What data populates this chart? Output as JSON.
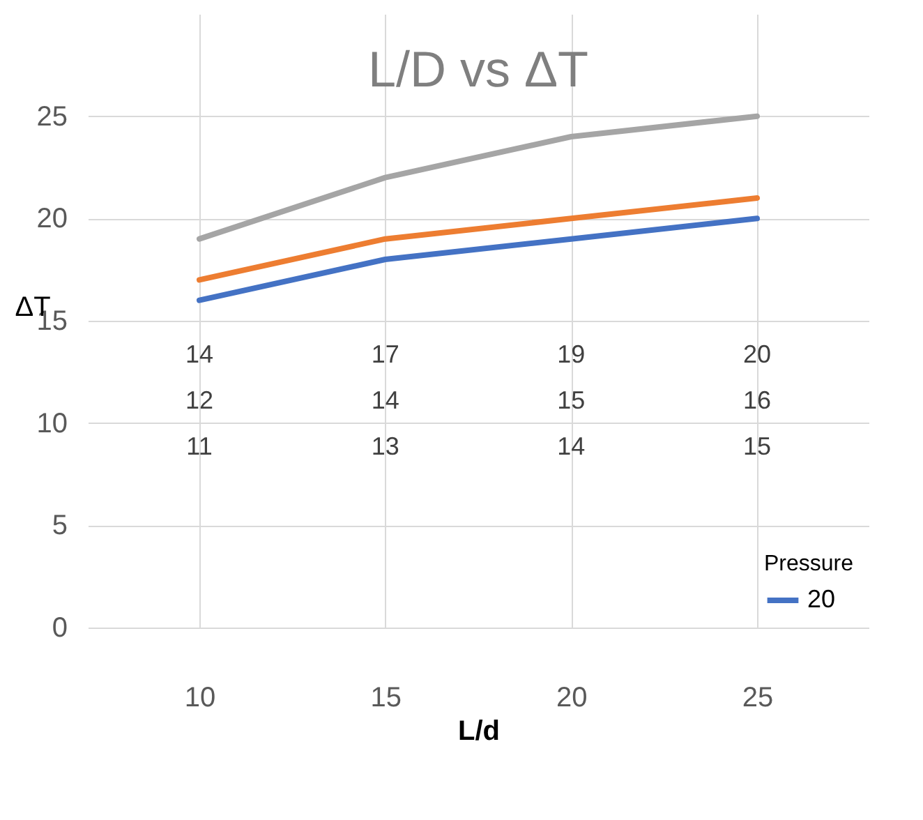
{
  "chart_data": {
    "type": "line",
    "title": "L/D    vs  ΔT",
    "xlabel": "L/d",
    "ylabel": "ΔT",
    "legend_title": "Pressure",
    "legend": "bottom right",
    "grid": true,
    "categories": [
      "10",
      "15",
      "20",
      "25"
    ],
    "series": [
      {
        "name": "20",
        "color": "#4472c4",
        "values": [
          16,
          18,
          19,
          20
        ]
      },
      {
        "color": "#ed7d31",
        "values": [
          17,
          19,
          20,
          21
        ]
      },
      {
        "color": "#a5a5a5",
        "values": [
          19,
          22,
          24,
          25
        ]
      }
    ],
    "ylim": [
      0,
      30
    ],
    "yticks": [
      0,
      5,
      10,
      15,
      20,
      25
    ],
    "annotations": [
      "14",
      "12",
      "11",
      "17",
      "14",
      "13",
      "19",
      "15",
      "14",
      "20",
      "16",
      "15"
    ]
  }
}
